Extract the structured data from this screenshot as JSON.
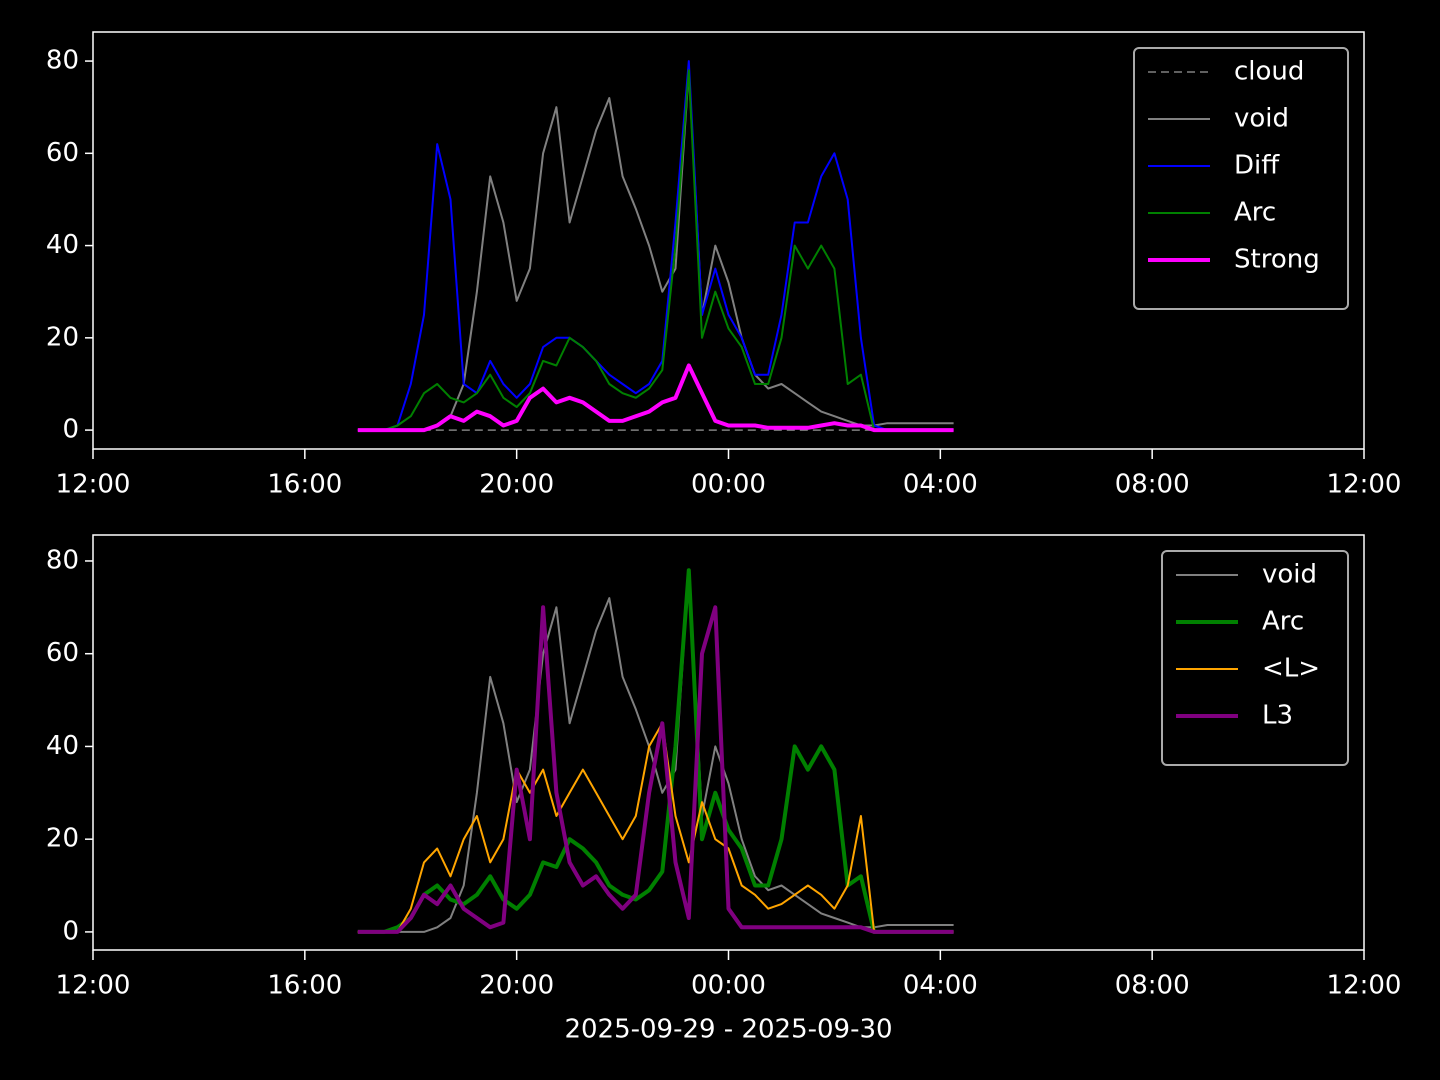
{
  "chart_data": [
    {
      "type": "line",
      "legend": "upper right",
      "x": [
        17,
        17.25,
        17.5,
        17.75,
        18,
        18.25,
        18.5,
        18.75,
        19,
        19.25,
        19.5,
        19.75,
        20,
        20.25,
        20.5,
        20.75,
        21,
        21.25,
        21.5,
        21.75,
        22,
        22.25,
        22.5,
        22.75,
        23,
        23.25,
        23.5,
        23.75,
        24,
        24.25,
        24.5,
        24.75,
        25,
        25.25,
        25.5,
        25.75,
        26,
        26.25,
        26.5,
        26.75,
        27,
        27.25,
        27.5,
        27.75,
        28,
        28.25
      ],
      "xlim": [
        12,
        36
      ],
      "xticks": [
        {
          "value": 12,
          "label": "12:00"
        },
        {
          "value": 16,
          "label": "16:00"
        },
        {
          "value": 20,
          "label": "20:00"
        },
        {
          "value": 24,
          "label": "00:00"
        },
        {
          "value": 28,
          "label": "04:00"
        },
        {
          "value": 32,
          "label": "08:00"
        },
        {
          "value": 36,
          "label": "12:00"
        }
      ],
      "ylim": [
        -4.1,
        86.3
      ],
      "yticks": [
        0,
        20,
        40,
        60,
        80
      ],
      "series": [
        {
          "name": "cloud",
          "color": "#808080",
          "linewidth": 1.5,
          "dashed": true,
          "values": [
            0,
            0,
            0,
            0,
            0,
            0,
            0,
            0,
            0,
            0,
            0,
            0,
            0,
            0,
            0,
            0,
            0,
            0,
            0,
            0,
            0,
            0,
            0,
            0,
            0,
            0,
            0,
            0,
            0,
            0,
            0,
            0,
            0,
            0,
            0,
            0,
            0,
            0,
            0,
            0,
            0,
            0,
            0,
            0,
            0,
            0
          ]
        },
        {
          "name": "void",
          "color": "#808080",
          "linewidth": 2,
          "values": [
            0,
            0,
            0,
            0,
            0,
            0,
            1,
            3,
            10,
            30,
            55,
            45,
            28,
            35,
            60,
            70,
            45,
            55,
            65,
            72,
            55,
            48,
            40,
            30,
            35,
            78,
            25,
            40,
            32,
            20,
            12,
            9,
            10,
            8,
            6,
            4,
            3,
            2,
            1,
            1,
            1.5,
            1.5,
            1.5,
            1.5,
            1.5,
            1.5
          ]
        },
        {
          "name": "Diff",
          "color": "#0000ff",
          "linewidth": 2,
          "values": [
            0,
            0,
            0,
            1,
            10,
            25,
            62,
            50,
            10,
            8,
            15,
            10,
            7,
            10,
            18,
            20,
            20,
            18,
            15,
            12,
            10,
            8,
            10,
            15,
            45,
            80,
            25,
            35,
            25,
            20,
            12,
            12,
            25,
            45,
            45,
            55,
            60,
            50,
            20,
            1,
            0,
            0,
            0,
            0,
            0,
            0
          ]
        },
        {
          "name": "Arc",
          "color": "#008000",
          "linewidth": 2,
          "values": [
            0,
            0,
            0,
            1,
            3,
            8,
            10,
            7,
            6,
            8,
            12,
            7,
            5,
            8,
            15,
            14,
            20,
            18,
            15,
            10,
            8,
            7,
            9,
            13,
            40,
            78,
            20,
            30,
            22,
            18,
            10,
            10,
            20,
            40,
            35,
            40,
            35,
            10,
            12,
            0,
            0,
            0,
            0,
            0,
            0,
            0
          ]
        },
        {
          "name": "Strong",
          "color": "#ff00ff",
          "linewidth": 4,
          "values": [
            0,
            0,
            0,
            0,
            0,
            0,
            1,
            3,
            2,
            4,
            3,
            1,
            2,
            7,
            9,
            6,
            7,
            6,
            4,
            2,
            2,
            3,
            4,
            6,
            7,
            14,
            8,
            2,
            1,
            1,
            1,
            0.5,
            0.5,
            0.5,
            0.5,
            1,
            1.5,
            1,
            1,
            0,
            0,
            0,
            0,
            0,
            0,
            0
          ]
        }
      ]
    },
    {
      "type": "line",
      "legend": "upper right",
      "xlabel": "2025-09-29 - 2025-09-30",
      "x": [
        17,
        17.25,
        17.5,
        17.75,
        18,
        18.25,
        18.5,
        18.75,
        19,
        19.25,
        19.5,
        19.75,
        20,
        20.25,
        20.5,
        20.75,
        21,
        21.25,
        21.5,
        21.75,
        22,
        22.25,
        22.5,
        22.75,
        23,
        23.25,
        23.5,
        23.75,
        24,
        24.25,
        24.5,
        24.75,
        25,
        25.25,
        25.5,
        25.75,
        26,
        26.25,
        26.5,
        26.75,
        27,
        27.25,
        27.5,
        27.75,
        28,
        28.25
      ],
      "xlim": [
        12,
        36
      ],
      "xticks": [
        {
          "value": 12,
          "label": "12:00"
        },
        {
          "value": 16,
          "label": "16:00"
        },
        {
          "value": 20,
          "label": "20:00"
        },
        {
          "value": 24,
          "label": "00:00"
        },
        {
          "value": 28,
          "label": "04:00"
        },
        {
          "value": 32,
          "label": "08:00"
        },
        {
          "value": 36,
          "label": "12:00"
        }
      ],
      "ylim": [
        -3.9,
        85.6
      ],
      "yticks": [
        0,
        20,
        40,
        60,
        80
      ],
      "series": [
        {
          "name": "void",
          "color": "#808080",
          "linewidth": 2,
          "values": [
            0,
            0,
            0,
            0,
            0,
            0,
            1,
            3,
            10,
            30,
            55,
            45,
            28,
            35,
            60,
            70,
            45,
            55,
            65,
            72,
            55,
            48,
            40,
            30,
            35,
            78,
            25,
            40,
            32,
            20,
            12,
            9,
            10,
            8,
            6,
            4,
            3,
            2,
            1,
            1,
            1.5,
            1.5,
            1.5,
            1.5,
            1.5,
            1.5
          ]
        },
        {
          "name": "Arc",
          "color": "#008000",
          "linewidth": 4,
          "values": [
            0,
            0,
            0,
            1,
            3,
            8,
            10,
            7,
            6,
            8,
            12,
            7,
            5,
            8,
            15,
            14,
            20,
            18,
            15,
            10,
            8,
            7,
            9,
            13,
            40,
            78,
            20,
            30,
            22,
            18,
            10,
            10,
            20,
            40,
            35,
            40,
            35,
            10,
            12,
            0,
            0,
            0,
            0,
            0,
            0,
            0
          ]
        },
        {
          "name": "<L>",
          "color": "#ffa500",
          "linewidth": 2,
          "values": [
            0,
            0,
            0,
            0,
            5,
            15,
            18,
            12,
            20,
            25,
            15,
            20,
            35,
            30,
            35,
            25,
            30,
            35,
            30,
            25,
            20,
            25,
            40,
            45,
            25,
            15,
            28,
            20,
            18,
            10,
            8,
            5,
            6,
            8,
            10,
            8,
            5,
            10,
            25,
            0,
            0,
            0,
            0,
            0,
            0,
            0
          ]
        },
        {
          "name": "L3",
          "color": "#800080",
          "linewidth": 4,
          "values": [
            0,
            0,
            0,
            0,
            3,
            8,
            6,
            10,
            5,
            3,
            1,
            2,
            35,
            20,
            70,
            30,
            15,
            10,
            12,
            8,
            5,
            8,
            30,
            45,
            15,
            3,
            60,
            70,
            5,
            1,
            1,
            1,
            1,
            1,
            1,
            1,
            1,
            1,
            1,
            0,
            0,
            0,
            0,
            0,
            0,
            0
          ]
        }
      ]
    }
  ]
}
